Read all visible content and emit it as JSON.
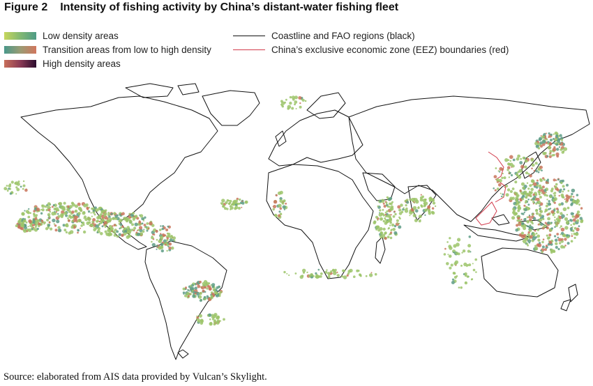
{
  "figure": {
    "label": "Figure 2",
    "title": "Intensity of fishing activity by China’s distant-water fishing fleet"
  },
  "legend": {
    "low": "Low density areas",
    "transition": "Transition areas from low to high density",
    "high": "High density areas",
    "coastline": "Coastline and FAO regions (black)",
    "eez": "China’s exclusive economic zone (EEZ) boundaries (red)"
  },
  "colors": {
    "low": "#9cc46a",
    "transition": "#5e9c86",
    "high": "#c9745c",
    "highest": "#2b0c2e",
    "coastline": "#111111",
    "eez": "#d23a4a"
  },
  "source": "Source: elaborated from AIS data provided by Vulcan’s Skylight."
}
